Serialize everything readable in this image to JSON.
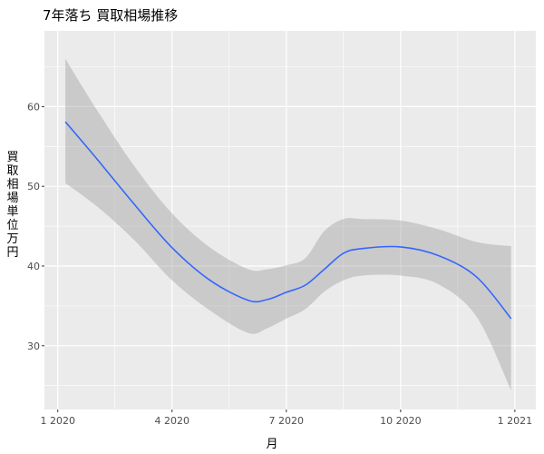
{
  "chart_data": {
    "type": "line",
    "title": "7年落ち 買取相場推移",
    "xlabel": "月",
    "ylabel": "買取相場　単位　万円",
    "x_tick_labels": [
      "1 2020",
      "4 2020",
      "7 2020",
      "10 2020",
      "1 2021"
    ],
    "x_tick_months": [
      0,
      3,
      6,
      9,
      12
    ],
    "xlim": [
      -0.35,
      12.55
    ],
    "y_ticks": [
      30,
      40,
      50,
      60
    ],
    "ylim": [
      22,
      69.5
    ],
    "grid": true,
    "legend": "none",
    "series": [
      {
        "type": "smooth-line-with-confidence-band",
        "color": "#3366FF",
        "band_color": "#999999",
        "x": [
          0.2,
          1.0,
          2.0,
          3.0,
          4.0,
          5.0,
          5.5,
          6.0,
          6.5,
          7.0,
          7.5,
          8.0,
          9.0,
          10.0,
          11.0,
          11.9
        ],
        "y": [
          58.1,
          53.6,
          47.8,
          42.3,
          38.2,
          35.7,
          35.8,
          36.7,
          37.6,
          39.6,
          41.6,
          42.2,
          42.4,
          41.3,
          38.6,
          33.4
        ],
        "lower": [
          50.4,
          47.6,
          43.3,
          38.2,
          34.4,
          31.6,
          32.2,
          33.4,
          34.6,
          36.8,
          38.2,
          38.8,
          38.8,
          37.7,
          33.6,
          24.4
        ],
        "upper": [
          66.0,
          59.8,
          52.6,
          46.6,
          42.3,
          39.6,
          39.6,
          40.1,
          41.0,
          44.4,
          45.9,
          45.9,
          45.7,
          44.6,
          43.0,
          42.5
        ]
      }
    ]
  }
}
